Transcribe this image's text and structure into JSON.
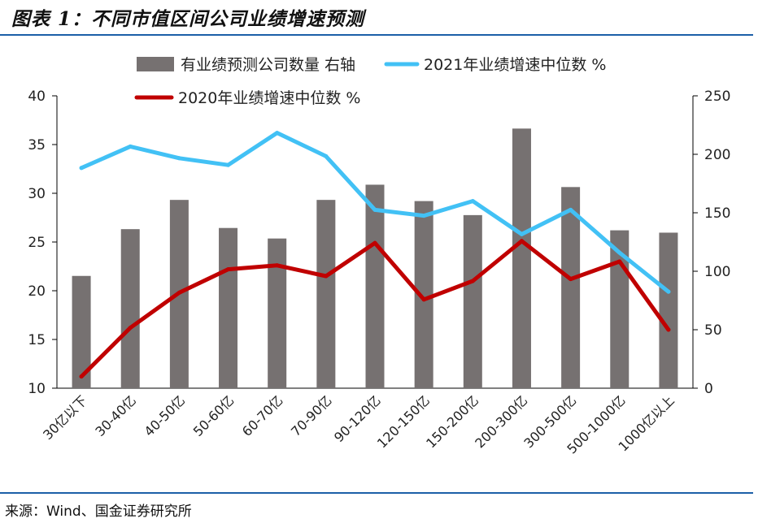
{
  "header": {
    "title": "图表 1：不同市值区间公司业绩增速预测"
  },
  "footer": {
    "source": "来源：Wind、国金证券研究所"
  },
  "colors": {
    "bar": "#767171",
    "line_2021": "#42c1f5",
    "line_2020": "#c00000",
    "rule": "#1c5fa8"
  },
  "chart_data": {
    "type": "bar",
    "categories": [
      "30亿以下",
      "30-40亿",
      "40-50亿",
      "50-60亿",
      "60-70亿",
      "70-90亿",
      "90-120亿",
      "120-150亿",
      "150-200亿",
      "200-300亿",
      "300-500亿",
      "500-1000亿",
      "1000亿以上"
    ],
    "series": [
      {
        "name": "有业绩预测公司数量 右轴",
        "type": "bar",
        "axis": "right",
        "values": [
          96,
          136,
          161,
          137,
          128,
          161,
          174,
          160,
          148,
          222,
          172,
          135,
          133
        ]
      },
      {
        "name": "2021年业绩增速中位数 %",
        "type": "line",
        "axis": "left",
        "values": [
          32.6,
          34.8,
          33.6,
          32.9,
          36.2,
          33.8,
          28.3,
          27.7,
          29.2,
          25.8,
          28.3,
          23.9,
          19.9
        ]
      },
      {
        "name": "2020年业绩增速中位数 %",
        "type": "line",
        "axis": "left",
        "values": [
          11.2,
          16.2,
          19.8,
          22.2,
          22.6,
          21.5,
          24.9,
          19.1,
          21.0,
          25.1,
          21.2,
          23.0,
          16.0
        ]
      }
    ],
    "y_left": {
      "ticks": [
        "40",
        "35",
        "30",
        "25",
        "20",
        "15",
        "10"
      ],
      "range": [
        10,
        40
      ]
    },
    "y_right": {
      "ticks": [
        "250",
        "200",
        "150",
        "100",
        "50",
        "0"
      ],
      "range": [
        0,
        250
      ]
    },
    "legend": {
      "placement": "top",
      "items": [
        "有业绩预测公司数量 右轴",
        "2021年业绩增速中位数 %",
        "2020年业绩增速中位数 %"
      ]
    }
  }
}
